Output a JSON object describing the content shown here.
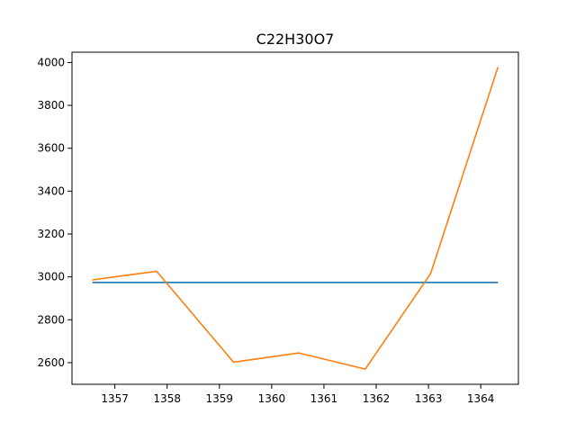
{
  "chart_data": {
    "type": "line",
    "title": "C22H30O7",
    "xlabel": "",
    "ylabel": "",
    "xlim": [
      1356.18,
      1364.72
    ],
    "ylim": [
      2499,
      4048
    ],
    "x_ticks": [
      1357,
      1358,
      1359,
      1360,
      1361,
      1362,
      1363,
      1364
    ],
    "y_ticks": [
      2600,
      2800,
      3000,
      3200,
      3400,
      3600,
      3800,
      4000
    ],
    "grid": false,
    "series": [
      {
        "color": "#1f77b4",
        "x": [
          1356.57,
          1364.33
        ],
        "y": [
          2974,
          2974
        ]
      },
      {
        "color": "#ff7f0e",
        "x": [
          1356.57,
          1357.8,
          1359.27,
          1360.52,
          1361.79,
          1363.04,
          1364.33
        ],
        "y": [
          2986,
          3026,
          2602,
          2645,
          2570,
          3015,
          3979
        ]
      }
    ]
  }
}
